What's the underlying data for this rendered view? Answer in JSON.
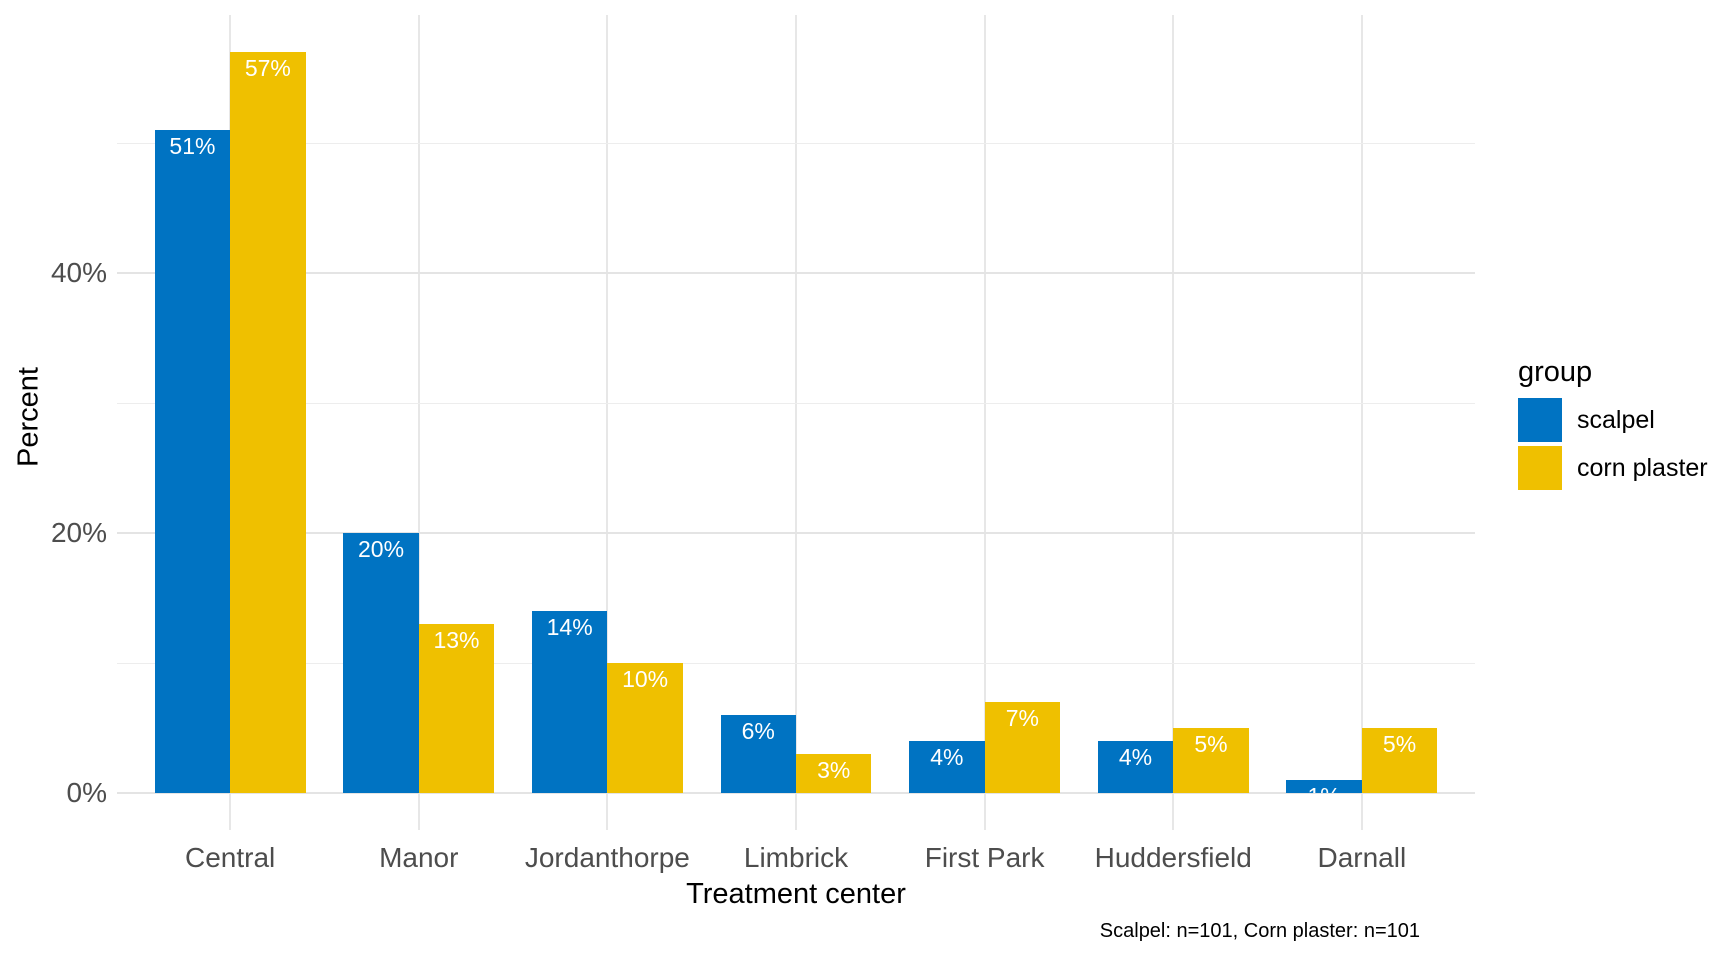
{
  "chart_data": {
    "type": "bar",
    "layout": "grouped",
    "title": "",
    "categories": [
      "Central",
      "Manor",
      "Jordanthorpe",
      "Limbrick",
      "First Park",
      "Huddersfield",
      "Darnall"
    ],
    "series": [
      {
        "name": "scalpel",
        "color": "#0073C2",
        "values": [
          51,
          20,
          14,
          6,
          4,
          4,
          1
        ]
      },
      {
        "name": "corn plaster",
        "color": "#EFC000",
        "values": [
          57,
          13,
          10,
          3,
          7,
          5,
          5
        ]
      }
    ],
    "value_suffix": "%",
    "xlabel": "Treatment center",
    "ylabel": "Percent",
    "y_ticks": [
      {
        "value": 0,
        "label": "0%"
      },
      {
        "value": 20,
        "label": "20%"
      },
      {
        "value": 40,
        "label": "40%"
      }
    ],
    "y_minor_gridlines": [
      10,
      30,
      50
    ],
    "ylim": [
      0,
      60
    ],
    "grid": "on",
    "legend": {
      "title": "group",
      "position": "right"
    },
    "caption": "Scalpel: n=101, Corn plaster: n=101",
    "colors": {
      "background": "#FFFFFF",
      "grid_major": "#E4E4E4",
      "grid_minor": "#EDEDED",
      "tick_label": "#4D4D4D",
      "axis_title": "#000000",
      "bar_label": "#FFFFFF"
    }
  }
}
